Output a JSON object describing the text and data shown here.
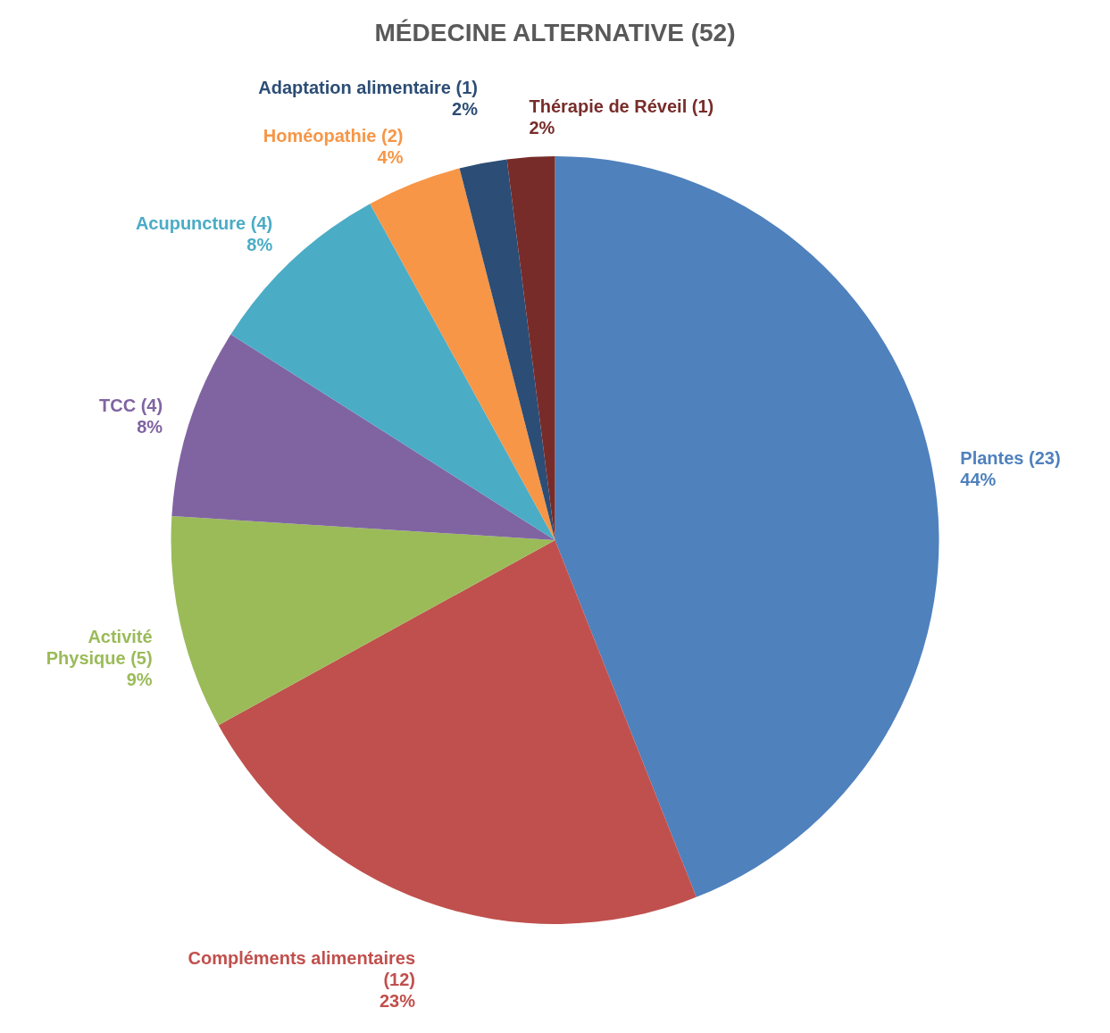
{
  "chart_data": {
    "type": "pie",
    "title": "MÉDECINE ALTERNATIVE (52)",
    "categories": [
      "Plantes (23)",
      "Compléments alimentaires (12)",
      "Activité Physique (5)",
      "TCC (4)",
      "Acupuncture (4)",
      "Homéopathie (2)",
      "Adaptation alimentaire (1)",
      "Thérapie de Réveil (1)"
    ],
    "values": [
      44,
      23,
      9,
      8,
      8,
      4,
      2,
      2
    ],
    "value_labels": [
      "44%",
      "23%",
      "9%",
      "8%",
      "8%",
      "4%",
      "2%",
      "2%"
    ],
    "colors": [
      "#4f81bd",
      "#c0504d",
      "#9bbb59",
      "#8064a2",
      "#4bacc6",
      "#f79646",
      "#2c4d75",
      "#772c2a"
    ]
  }
}
